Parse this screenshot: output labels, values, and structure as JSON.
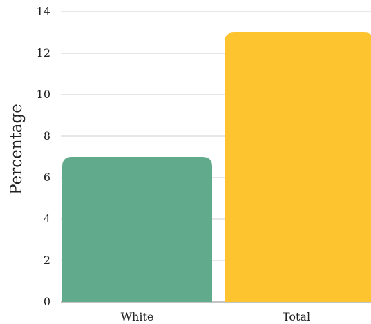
{
  "chart_data": {
    "type": "bar",
    "categories": [
      "White",
      "Total"
    ],
    "values": [
      7,
      13
    ],
    "xlabel": "",
    "ylabel": "Percentage",
    "ylim": [
      0,
      14
    ],
    "yticks": [
      0,
      2,
      4,
      6,
      8,
      10,
      12,
      14
    ],
    "grid": true,
    "legend": "none",
    "colors": [
      "#61AB8C",
      "#FDC42F"
    ]
  }
}
